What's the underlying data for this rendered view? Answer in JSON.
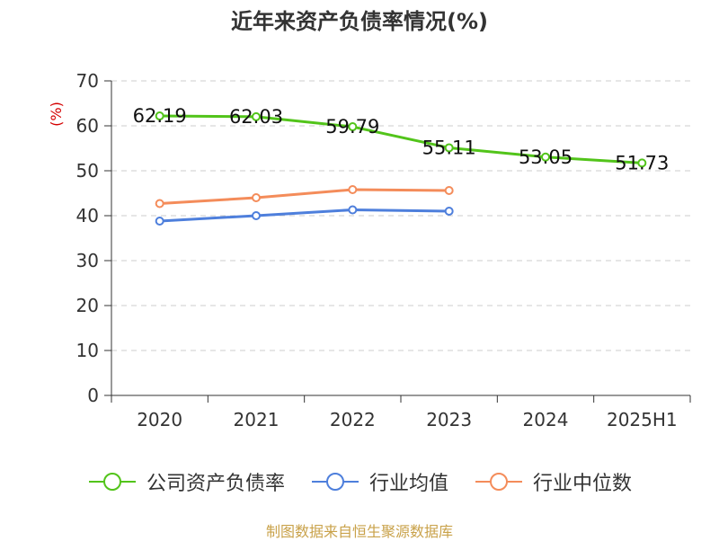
{
  "chart_data": {
    "type": "line",
    "title": "近年来资产负债率情况(%)",
    "ylabel": "(%)",
    "xlabel": "",
    "categories": [
      "2020",
      "2021",
      "2022",
      "2023",
      "2024",
      "2025H1"
    ],
    "ylim": [
      0,
      70
    ],
    "yticks": [
      0,
      10,
      20,
      30,
      40,
      50,
      60,
      70
    ],
    "grid": true,
    "legend_position": "bottom",
    "series": [
      {
        "name": "公司资产负债率",
        "color": "#52c41a",
        "values": [
          62.19,
          62.03,
          59.79,
          55.11,
          53.05,
          51.73
        ],
        "labels": true
      },
      {
        "name": "行业均值",
        "color": "#4e7fdc",
        "values": [
          38.8,
          40.0,
          41.3,
          41.0,
          null,
          null
        ],
        "labels": false
      },
      {
        "name": "行业中位数",
        "color": "#f48c5a",
        "values": [
          42.7,
          44.0,
          45.8,
          45.6,
          null,
          null
        ],
        "labels": false
      }
    ]
  },
  "footer": {
    "source": "制图数据来自恒生聚源数据库"
  }
}
